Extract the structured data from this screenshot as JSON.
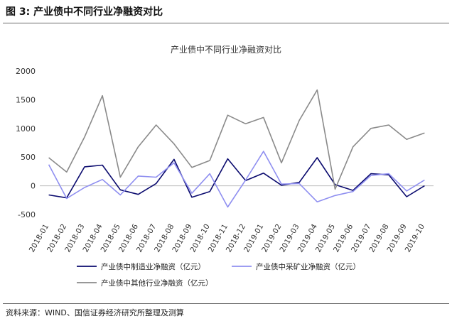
{
  "figure": {
    "title": "图 3:  产业债中不同行业净融资对比",
    "source": "资料来源：WIND、国信证券经济研究所整理及测算"
  },
  "chart_data": {
    "type": "line",
    "title": "产业债中不同行业净融资对比",
    "xlabel": "",
    "ylabel": "",
    "ylim": [
      -500,
      2000
    ],
    "yticks": [
      "2000",
      "1500",
      "1000",
      "500",
      "0",
      "-500"
    ],
    "grid": false,
    "legend_position": "bottom",
    "categories": [
      "2018-01",
      "2018-02",
      "2018-03",
      "2018-04",
      "2018-05",
      "2018-06",
      "2018-07",
      "2018-08",
      "2018-09",
      "2018-10",
      "2018-11",
      "2018-12",
      "2019-01",
      "2019-02",
      "2019-03",
      "2019-04",
      "2019-05",
      "2019-06",
      "2019-07",
      "2019-08",
      "2019-09",
      "2019-10"
    ],
    "series": [
      {
        "name": "产业债中制造业净融资（亿元）",
        "color": "#0a0a6e",
        "values": [
          -160,
          -210,
          330,
          360,
          -70,
          -150,
          40,
          460,
          -200,
          -100,
          470,
          90,
          220,
          10,
          60,
          490,
          20,
          -80,
          210,
          190,
          -190,
          0
        ]
      },
      {
        "name": "产业债中采矿业净融资（亿元）",
        "color": "#8f8ff0",
        "values": [
          370,
          -220,
          -30,
          110,
          -160,
          170,
          150,
          400,
          -130,
          210,
          -370,
          100,
          600,
          30,
          40,
          -280,
          -170,
          -100,
          180,
          210,
          -90,
          100
        ]
      },
      {
        "name": "产业债中其他行业净融资（亿元）",
        "color": "#8a8a8a",
        "values": [
          490,
          240,
          850,
          1570,
          150,
          680,
          1060,
          730,
          320,
          440,
          1230,
          1080,
          1190,
          400,
          1140,
          1670,
          -60,
          680,
          1000,
          1060,
          810,
          920
        ]
      }
    ]
  }
}
